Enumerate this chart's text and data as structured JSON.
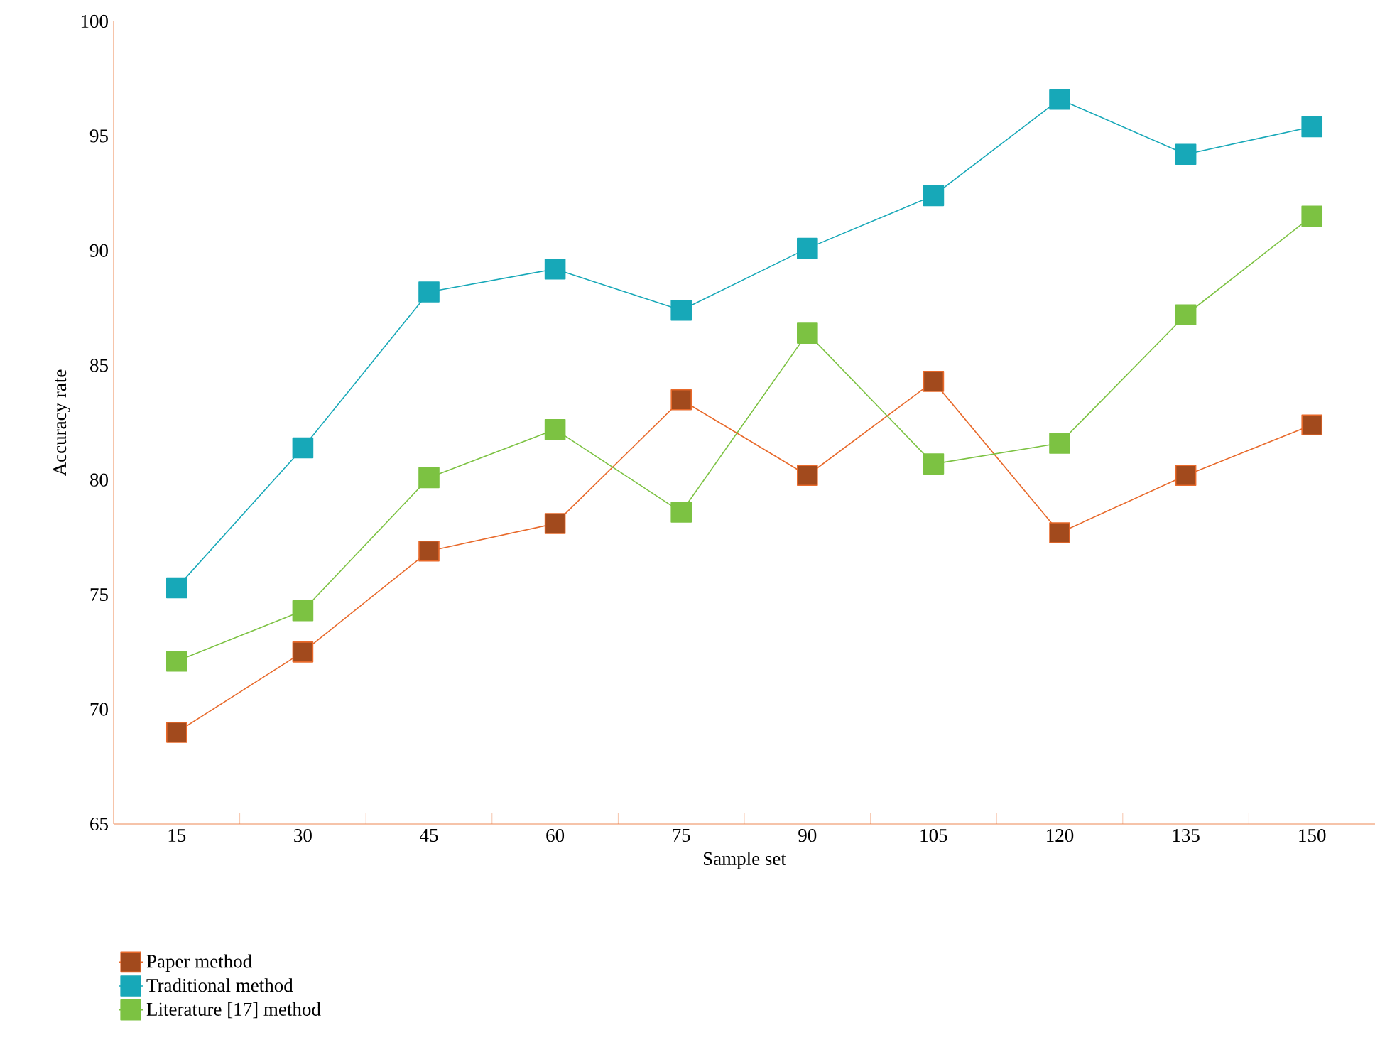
{
  "chart_data": {
    "type": "line",
    "xlabel": "Sample set",
    "ylabel": "Accuracy rate",
    "categories": [
      "15",
      "30",
      "45",
      "60",
      "75",
      "90",
      "105",
      "120",
      "135",
      "150"
    ],
    "series": [
      {
        "name": "Paper method",
        "color": "#e8692a",
        "values": [
          69.0,
          72.5,
          76.9,
          78.1,
          83.5,
          80.2,
          84.3,
          77.7,
          80.2,
          82.4
        ]
      },
      {
        "name": "Traditional method",
        "color": "#17a8b8",
        "values": [
          75.3,
          81.4,
          88.2,
          89.2,
          87.4,
          90.1,
          92.4,
          96.6,
          94.2,
          95.4
        ]
      },
      {
        "name": "Literature [17] method",
        "color": "#7cc242",
        "values": [
          72.1,
          74.3,
          80.1,
          82.2,
          78.6,
          86.4,
          80.7,
          81.6,
          87.2,
          91.5
        ]
      }
    ],
    "ylim": [
      65,
      100
    ],
    "yticks": [
      65,
      70,
      75,
      80,
      85,
      90,
      95,
      100
    ],
    "marker": "square",
    "line_style": "solid",
    "grid": false,
    "legend": "bottom left"
  }
}
